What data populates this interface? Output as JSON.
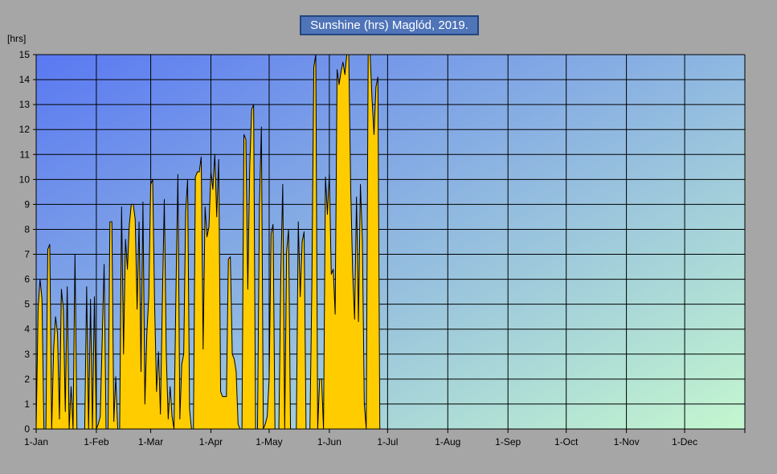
{
  "chart_data": {
    "type": "area",
    "title": "Sunshine  (hrs) Maglód, 2019.",
    "ylabel": "[hrs]",
    "ylim": [
      0,
      15
    ],
    "yticks": [
      0,
      1,
      2,
      3,
      4,
      5,
      6,
      7,
      8,
      9,
      10,
      11,
      12,
      13,
      14,
      15
    ],
    "xlim": [
      0,
      365
    ],
    "xtick_labels": [
      "1-Jan",
      "1-Feb",
      "1-Mar",
      "1-Apr",
      "1-May",
      "1-Jun",
      "1-Jul",
      "1-Aug",
      "1-Sep",
      "1-Oct",
      "1-Nov",
      "1-Dec"
    ],
    "xtick_days": [
      0,
      31,
      59,
      90,
      120,
      151,
      181,
      212,
      243,
      273,
      304,
      334
    ],
    "grid": true,
    "colors": {
      "fill": "#ffcc00",
      "line": "#000000",
      "background_top": "#5a78f2",
      "background_bottom": "#c4f7cf",
      "title_box": "#4f74b8"
    },
    "x_start": "2019-01-01",
    "series": [
      {
        "name": "",
        "values": [
          0,
          4.8,
          6,
          5.2,
          0,
          0,
          7.2,
          7.4,
          0,
          3.2,
          4.5,
          3.8,
          0.4,
          5.6,
          4.8,
          0.7,
          5.7,
          0,
          1.7,
          0,
          7,
          0,
          0,
          0,
          0,
          0,
          5.7,
          0,
          5.2,
          0,
          5.3,
          0,
          0.2,
          0.5,
          3.5,
          6.6,
          0,
          0,
          8.3,
          8.3,
          0.3,
          2.1,
          0,
          0,
          8.9,
          3,
          7.6,
          6.4,
          8.2,
          9,
          9,
          8.4,
          4.8,
          8.3,
          2.3,
          9.1,
          1,
          3.8,
          5.3,
          9.8,
          10,
          5,
          1.5,
          3.1,
          0.6,
          5.1,
          9.2,
          3,
          0.4,
          1.7,
          0.5,
          0,
          5.5,
          10.2,
          0.4,
          2.6,
          3,
          8.7,
          10,
          0.8,
          0,
          0,
          10.1,
          10.3,
          10.3,
          10.9,
          3.2,
          8.9,
          7.7,
          8.1,
          10.3,
          9.6,
          11,
          8.5,
          10.8,
          1.5,
          1.3,
          1.3,
          1.3,
          6.8,
          6.9,
          3,
          2.8,
          2.3,
          0.2,
          0,
          0,
          11.8,
          11.6,
          5.6,
          10.5,
          12.8,
          13,
          0,
          0,
          9,
          12.1,
          0,
          0.2,
          0.5,
          2,
          7.8,
          8.2,
          0,
          0,
          0,
          6.2,
          9.8,
          0,
          7.1,
          8,
          0,
          0,
          0,
          0,
          8.3,
          5.3,
          7.5,
          7.9,
          0,
          0,
          0,
          5.8,
          14.5,
          15,
          0,
          2,
          2,
          0,
          10.1,
          8.6,
          10.2,
          6.2,
          6.4,
          4.6,
          14.4,
          13.8,
          14.3,
          14.7,
          14.2,
          15,
          15,
          9.6,
          6.3,
          4.4,
          9.3,
          4.3,
          9.8,
          7.6,
          1,
          0,
          15,
          15,
          13.2,
          11.8,
          13.7,
          14.1,
          0
        ]
      }
    ]
  }
}
